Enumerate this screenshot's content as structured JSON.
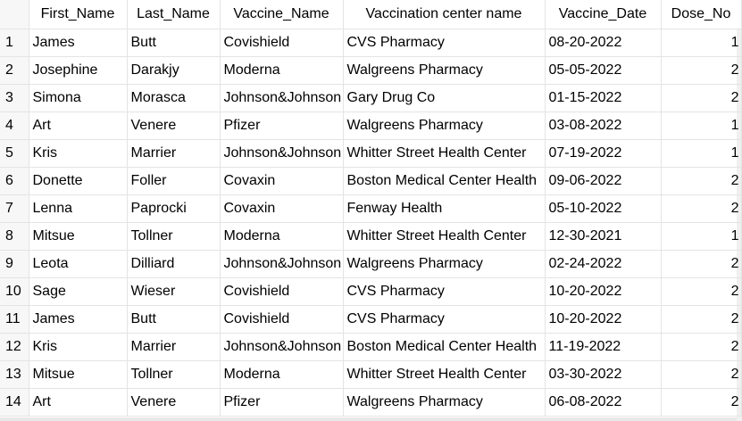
{
  "grid": {
    "columns": [
      "First_Name",
      "Last_Name",
      "Vaccine_Name",
      "Vaccination center name",
      "Vaccine_Date",
      "Dose_No"
    ],
    "rows": [
      {
        "n": "1",
        "first": "James",
        "last": "Butt",
        "vaccine": "Covishield",
        "center": "CVS Pharmacy",
        "date": "08-20-2022",
        "dose": "1"
      },
      {
        "n": "2",
        "first": "Josephine",
        "last": "Darakjy",
        "vaccine": "Moderna",
        "center": "Walgreens Pharmacy",
        "date": "05-05-2022",
        "dose": "2"
      },
      {
        "n": "3",
        "first": "Simona",
        "last": "Morasca",
        "vaccine": "Johnson&Johnson",
        "center": "Gary Drug Co",
        "date": "01-15-2022",
        "dose": "2"
      },
      {
        "n": "4",
        "first": "Art",
        "last": "Venere",
        "vaccine": "Pfizer",
        "center": "Walgreens Pharmacy",
        "date": "03-08-2022",
        "dose": "1"
      },
      {
        "n": "5",
        "first": "Kris",
        "last": "Marrier",
        "vaccine": "Johnson&Johnson",
        "center": "Whitter Street Health Center",
        "date": "07-19-2022",
        "dose": "1"
      },
      {
        "n": "6",
        "first": "Donette",
        "last": "Foller",
        "vaccine": "Covaxin",
        "center": "Boston Medical Center Health",
        "date": "09-06-2022",
        "dose": "2"
      },
      {
        "n": "7",
        "first": "Lenna",
        "last": "Paprocki",
        "vaccine": "Covaxin",
        "center": "Fenway Health",
        "date": "05-10-2022",
        "dose": "2"
      },
      {
        "n": "8",
        "first": "Mitsue",
        "last": "Tollner",
        "vaccine": "Moderna",
        "center": "Whitter Street Health Center",
        "date": "12-30-2021",
        "dose": "1"
      },
      {
        "n": "9",
        "first": "Leota",
        "last": "Dilliard",
        "vaccine": "Johnson&Johnson",
        "center": "Walgreens Pharmacy",
        "date": "02-24-2022",
        "dose": "2"
      },
      {
        "n": "10",
        "first": "Sage",
        "last": "Wieser",
        "vaccine": "Covishield",
        "center": "CVS Pharmacy",
        "date": "10-20-2022",
        "dose": "2"
      },
      {
        "n": "11",
        "first": "James",
        "last": "Butt",
        "vaccine": "Covishield",
        "center": "CVS Pharmacy",
        "date": "10-20-2022",
        "dose": "2"
      },
      {
        "n": "12",
        "first": "Kris",
        "last": "Marrier",
        "vaccine": "Johnson&Johnson",
        "center": "Boston Medical Center Health",
        "date": "11-19-2022",
        "dose": "2"
      },
      {
        "n": "13",
        "first": "Mitsue",
        "last": "Tollner",
        "vaccine": "Moderna",
        "center": "Whitter Street Health Center",
        "date": "03-30-2022",
        "dose": "2"
      },
      {
        "n": "14",
        "first": "Art",
        "last": "Venere",
        "vaccine": "Pfizer",
        "center": "Walgreens Pharmacy",
        "date": "06-08-2022",
        "dose": "2"
      }
    ]
  }
}
